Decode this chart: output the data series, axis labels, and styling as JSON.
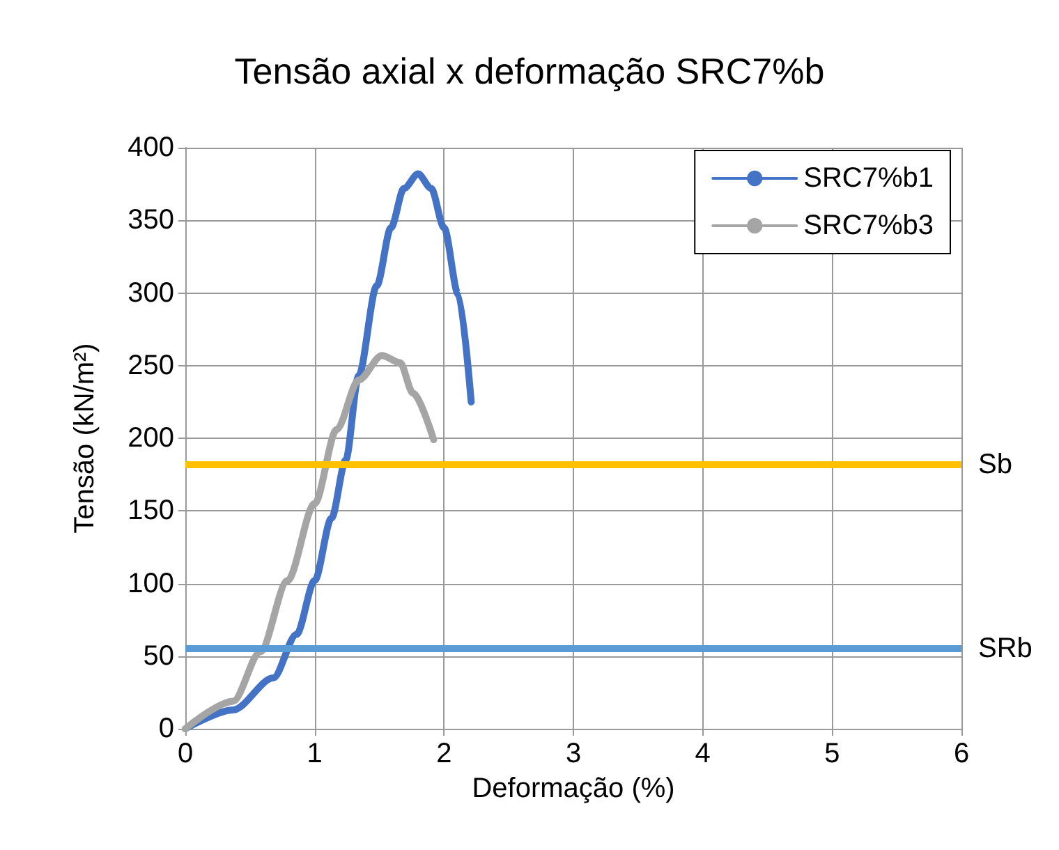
{
  "chart_data": {
    "type": "line",
    "title": "Tensão axial x deformação SRC7%b",
    "xlabel": "Deformação (%)",
    "ylabel": "Tensão (kN/m²)",
    "xlim": [
      0,
      6
    ],
    "xticks": [
      0,
      1,
      2,
      3,
      4,
      5,
      6
    ],
    "ylim": [
      0,
      400
    ],
    "yticks": [
      0,
      50,
      100,
      150,
      200,
      250,
      300,
      350,
      400
    ],
    "grid": true,
    "legend": "top right",
    "marker": "none",
    "line_style": "solid",
    "series": [
      {
        "name": "SRC7%b1",
        "color": "#4472c4",
        "x": [
          0,
          0.37,
          0.68,
          0.86,
          1.0,
          1.13,
          1.24,
          1.34,
          1.48,
          1.59,
          1.69,
          1.8,
          1.9,
          2.0,
          2.11,
          2.21
        ],
        "values": [
          0,
          13,
          35,
          65,
          102,
          145,
          185,
          243,
          305,
          345,
          372,
          382,
          372,
          345,
          299,
          225
        ]
      },
      {
        "name": "SRC7%b3",
        "color": "#a5a5a5",
        "x": [
          0,
          0.37,
          0.58,
          0.79,
          1.0,
          1.17,
          1.34,
          1.52,
          1.66,
          1.76,
          1.92
        ],
        "values": [
          0,
          19,
          53,
          102,
          155,
          206,
          240,
          257,
          252,
          231,
          199
        ]
      }
    ],
    "ref_lines": [
      {
        "axis": "y",
        "value": 182,
        "label": "Sb",
        "color": "#ffc000"
      },
      {
        "axis": "y",
        "value": 55,
        "label": "SRb",
        "color": "#5b9bd5"
      }
    ]
  }
}
